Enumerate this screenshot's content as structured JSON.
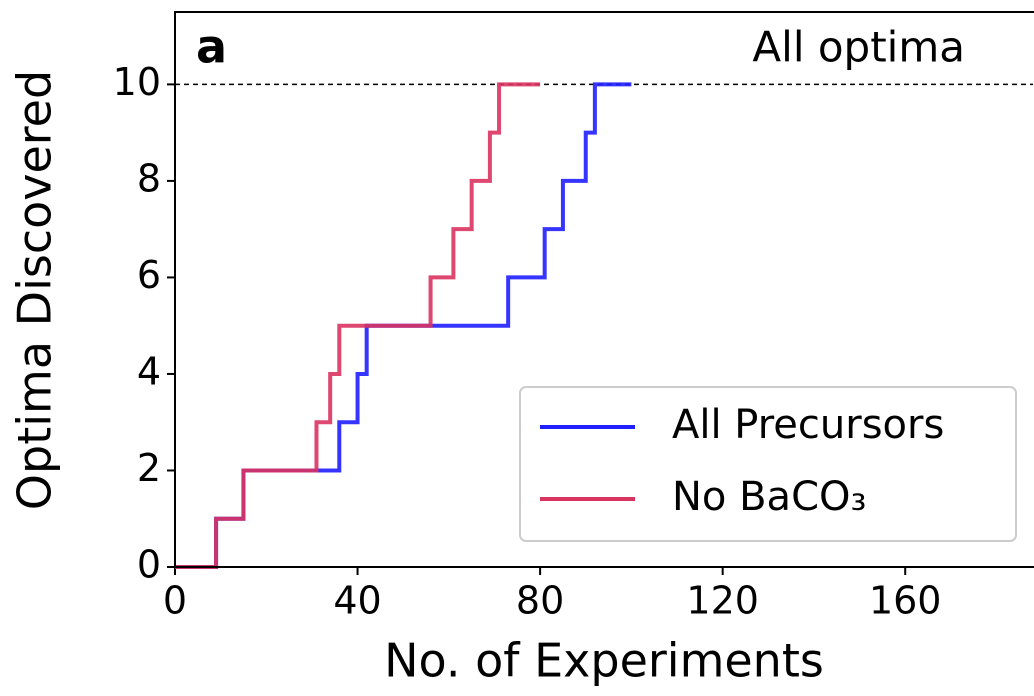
{
  "chart_data": {
    "type": "line",
    "title": "All optima",
    "panel_label": "a",
    "xlabel": "No. of Experiments",
    "ylabel": "Optima Discovered",
    "xlim": [
      0,
      188
    ],
    "xticks": [
      0,
      40,
      80,
      120,
      160
    ],
    "ylim": [
      0,
      11.5
    ],
    "yticks": [
      0,
      2,
      4,
      6,
      8,
      10
    ],
    "hline": 10,
    "legend": "lower right",
    "series": [
      {
        "name": "All Precursors",
        "color": "#1f1fff",
        "x": [
          0,
          9,
          9,
          15,
          15,
          36,
          36,
          40,
          40,
          42,
          42,
          73,
          73,
          81,
          81,
          85,
          85,
          90,
          90,
          92,
          92,
          100
        ],
        "values": [
          0,
          0,
          1,
          1,
          2,
          2,
          3,
          3,
          4,
          4,
          5,
          5,
          6,
          6,
          7,
          7,
          8,
          8,
          9,
          9,
          10,
          10
        ]
      },
      {
        "name": "No BaCO₃",
        "color": "#d93360",
        "x": [
          0,
          9,
          9,
          15,
          15,
          31,
          31,
          34,
          34,
          36,
          36,
          56,
          56,
          61,
          61,
          65,
          65,
          69,
          69,
          71,
          71,
          80
        ],
        "values": [
          0,
          0,
          1,
          1,
          2,
          2,
          3,
          3,
          4,
          4,
          5,
          5,
          6,
          6,
          7,
          7,
          8,
          8,
          9,
          9,
          10,
          10
        ]
      }
    ]
  }
}
